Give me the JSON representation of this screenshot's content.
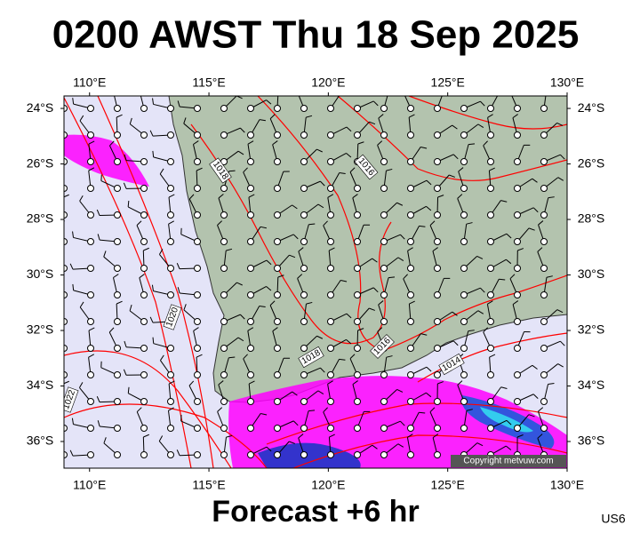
{
  "header": {
    "title": "0200 AWST Thu 18 Sep 2025"
  },
  "map": {
    "lon_ticks": [
      {
        "value": 110,
        "label": "110°E"
      },
      {
        "value": 115,
        "label": "115°E"
      },
      {
        "value": 120,
        "label": "120°E"
      },
      {
        "value": 125,
        "label": "125°E"
      },
      {
        "value": 130,
        "label": "130°E"
      }
    ],
    "lat_ticks": [
      {
        "value": -24,
        "label": "24°S"
      },
      {
        "value": -26,
        "label": "26°S"
      },
      {
        "value": -28,
        "label": "28°S"
      },
      {
        "value": -30,
        "label": "30°S"
      },
      {
        "value": -32,
        "label": "32°S"
      },
      {
        "value": -34,
        "label": "34°S"
      },
      {
        "value": -36,
        "label": "36°S"
      }
    ],
    "isobar_labels": [
      "1018",
      "1016",
      "1020",
      "1018",
      "1016",
      "1014",
      "1022"
    ],
    "copyright": "Copyright metvuw.com"
  },
  "footer": {
    "forecast": "Forecast +6 hr",
    "code": "US6"
  }
}
